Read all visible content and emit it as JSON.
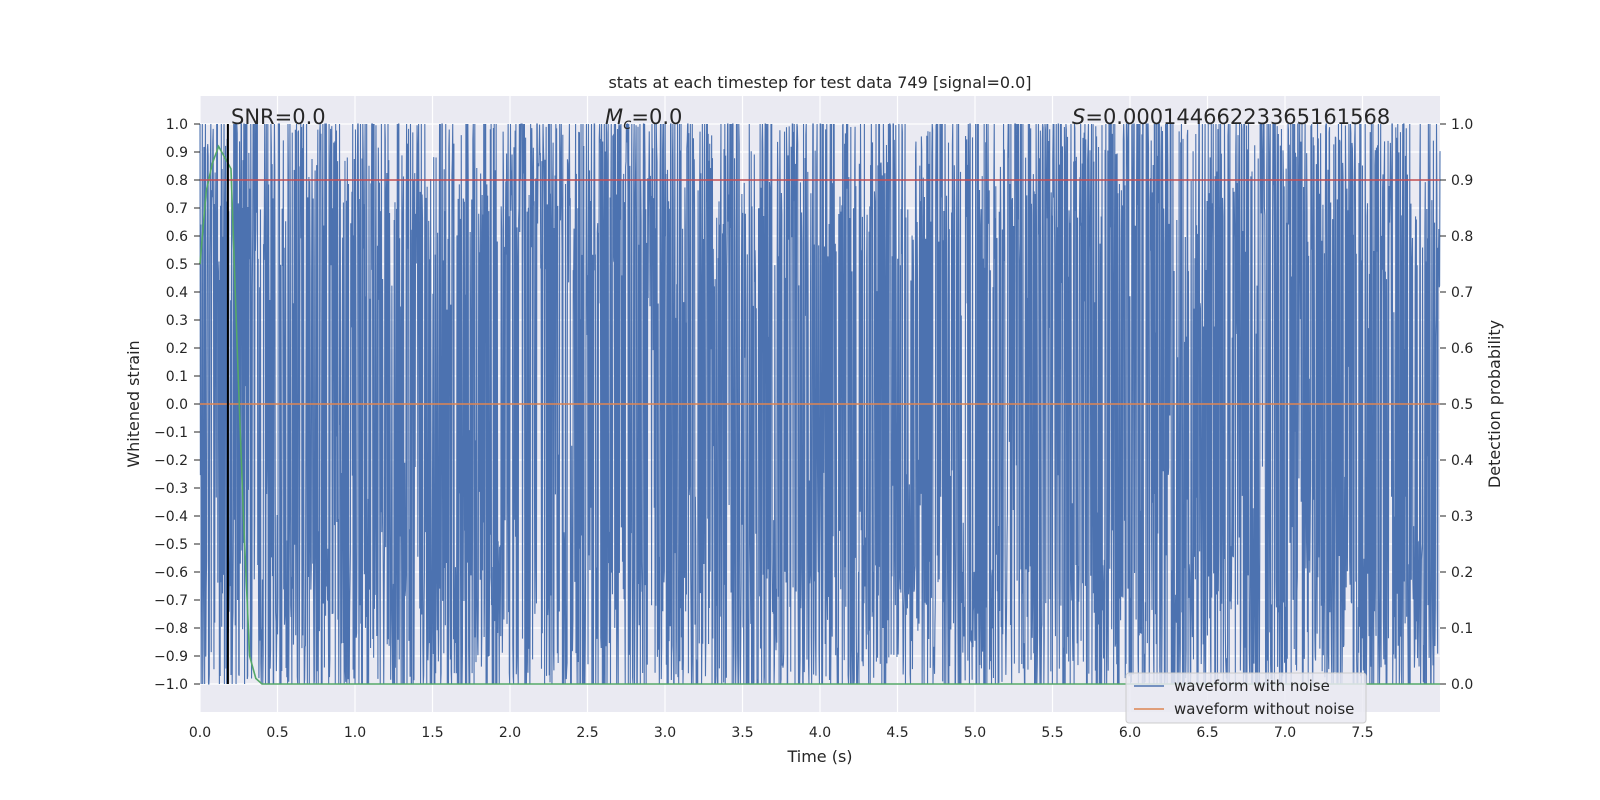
{
  "chart_data": {
    "type": "line",
    "title": "stats at each timestep for test data 749 [signal=0.0]",
    "xlabel": "Time (s)",
    "ylabel": "Whitened strain",
    "y2label": "Detection probability",
    "xlim": [
      0.0,
      8.0
    ],
    "ylim": [
      -1.1,
      1.1
    ],
    "y2lim": [
      -0.05,
      1.05
    ],
    "x_ticks": [
      0.0,
      0.5,
      1.0,
      1.5,
      2.0,
      2.5,
      3.0,
      3.5,
      4.0,
      4.5,
      5.0,
      5.5,
      6.0,
      6.5,
      7.0,
      7.5
    ],
    "x_tick_labels": [
      "0.0",
      "0.5",
      "1.0",
      "1.5",
      "2.0",
      "2.5",
      "3.0",
      "3.5",
      "4.0",
      "4.5",
      "5.0",
      "5.5",
      "6.0",
      "6.5",
      "7.0",
      "7.5"
    ],
    "y_ticks": [
      1.0,
      0.9,
      0.8,
      0.7,
      0.6,
      0.5,
      0.4,
      0.3,
      0.2,
      0.1,
      0.0,
      -0.1,
      -0.2,
      -0.3,
      -0.4,
      -0.5,
      -0.6,
      -0.7,
      -0.8,
      -0.9,
      -1.0
    ],
    "y_tick_labels": [
      "1.0",
      "0.9",
      "0.8",
      "0.7",
      "0.6",
      "0.5",
      "0.4",
      "0.3",
      "0.2",
      "0.1",
      "0.0",
      "−0.1",
      "−0.2",
      "−0.3",
      "−0.4",
      "−0.5",
      "−0.6",
      "−0.7",
      "−0.8",
      "−0.9",
      "−1.0"
    ],
    "y2_ticks": [
      1.0,
      0.9,
      0.8,
      0.7,
      0.6,
      0.5,
      0.4,
      0.3,
      0.2,
      0.1,
      0.0
    ],
    "y2_tick_labels": [
      "1.0",
      "0.9",
      "0.8",
      "0.7",
      "0.6",
      "0.5",
      "0.4",
      "0.3",
      "0.2",
      "0.1",
      "0.0"
    ],
    "grid": true,
    "legend_position": "lower-right",
    "series": [
      {
        "name": "waveform with noise",
        "color": "#4c72b0",
        "axis": "left",
        "x_range": [
          0.0,
          8.0
        ],
        "y_range": [
          -1.0,
          1.0
        ],
        "note_values": "dense noise filling most of [-1, 1]"
      },
      {
        "name": "waveform without noise",
        "color": "#dd8452",
        "axis": "left",
        "x": [
          0.0,
          8.0
        ],
        "y": [
          0.0,
          0.0
        ]
      },
      {
        "name": "",
        "color": "#55a868",
        "axis": "right",
        "x": [
          0.0,
          0.04,
          0.08,
          0.12,
          0.16,
          0.2,
          0.24,
          0.28,
          0.32,
          0.36,
          0.4,
          8.0
        ],
        "y": [
          0.75,
          0.88,
          0.93,
          0.96,
          0.94,
          0.92,
          0.6,
          0.3,
          0.05,
          0.01,
          0.0,
          0.0
        ]
      },
      {
        "name": "",
        "color": "#c44e52",
        "axis": "right",
        "x": [
          0.0,
          8.0
        ],
        "y": [
          0.9,
          0.9
        ]
      }
    ],
    "vline": {
      "x": 0.18,
      "color": "#000000"
    },
    "annotations": {
      "snr": "SNR=0.0",
      "mc_symbol": "M",
      "mc_sub": "c",
      "mc_value": "=0.0",
      "s_symbol": "S",
      "s_value": "=0.00014466223365161568"
    },
    "colors": {
      "plot_background": "#eaeaf2",
      "grid": "#ffffff",
      "noise": "#4c72b0",
      "signal": "#dd8452",
      "probability": "#55a868",
      "threshold": "#c44e52"
    }
  }
}
